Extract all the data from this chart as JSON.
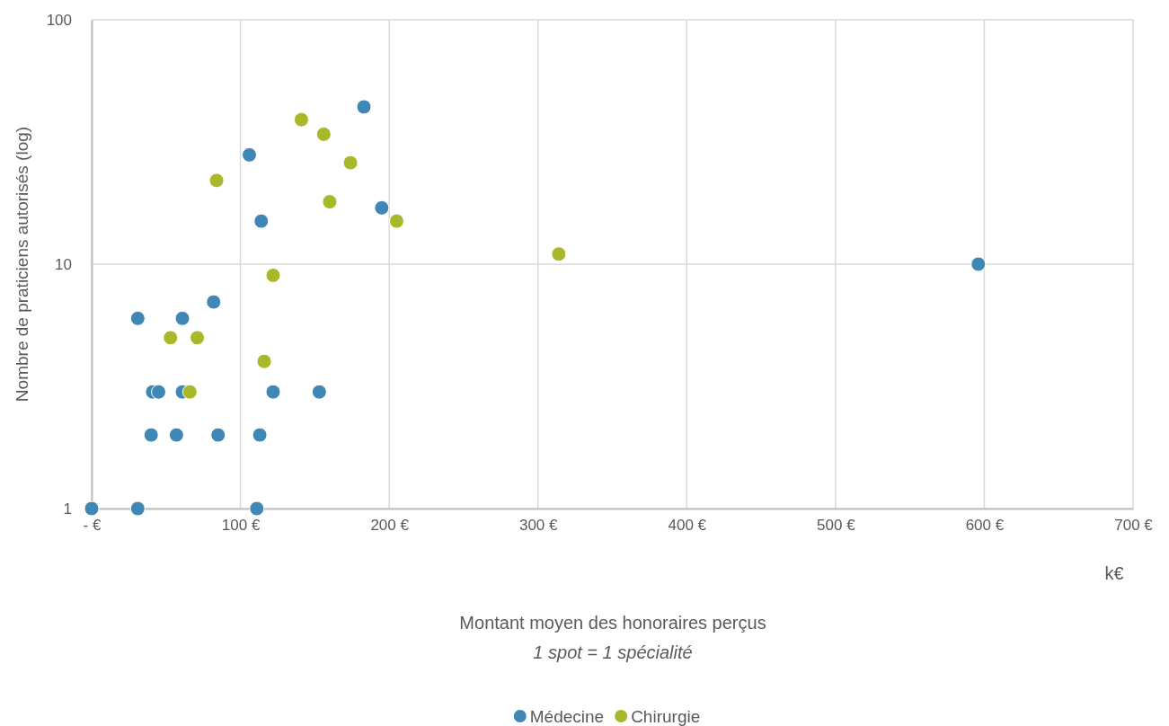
{
  "chart_data": {
    "type": "scatter",
    "ylabel": "Nombre de praticiens autorisés (log)",
    "xlabel": "Montant moyen des honoraires perçus",
    "annotations": [
      "k€",
      "1 spot = 1 spécialité"
    ],
    "log": "y",
    "grid": true,
    "legend": "bottom",
    "marker": "circle",
    "xlim": [
      0,
      700
    ],
    "xticks": [
      {
        "value": 0,
        "label": "-   €"
      },
      {
        "value": 100,
        "label": "100 €"
      },
      {
        "value": 200,
        "label": "200 €"
      },
      {
        "value": 300,
        "label": "300 €"
      },
      {
        "value": 400,
        "label": "400 €"
      },
      {
        "value": 500,
        "label": "500 €"
      },
      {
        "value": 600,
        "label": "600 €"
      },
      {
        "value": 700,
        "label": "700 €"
      }
    ],
    "ylim": [
      1,
      100
    ],
    "yticks": [
      1,
      10,
      100
    ],
    "series": [
      {
        "name": "Médecine",
        "color": "#3f88b5",
        "x": [
          0,
          31,
          111,
          31,
          61,
          82,
          41,
          45,
          61,
          122,
          153,
          40,
          57,
          85,
          113,
          106,
          114,
          183,
          195,
          596
        ],
        "values": [
          1,
          1,
          1,
          6,
          6,
          7,
          3,
          3,
          3,
          3,
          3,
          2,
          2,
          2,
          2,
          28,
          15,
          44,
          17,
          10
        ]
      },
      {
        "name": "Chirurgie",
        "color": "#a8b828",
        "x": [
          84,
          141,
          156,
          174,
          160,
          205,
          122,
          314,
          53,
          71,
          116,
          66
        ],
        "values": [
          22,
          39,
          34,
          26,
          18,
          15,
          9,
          11,
          5,
          5,
          4,
          3
        ]
      }
    ]
  }
}
